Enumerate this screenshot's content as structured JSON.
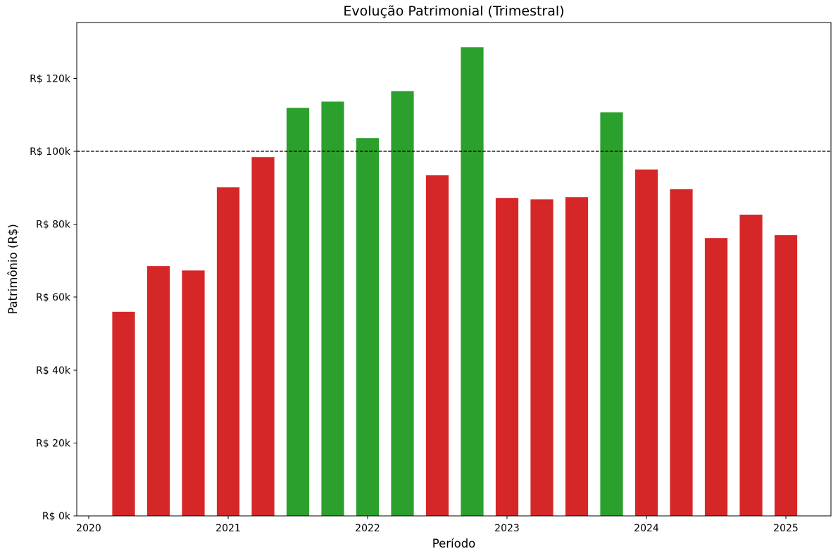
{
  "chart_data": {
    "type": "bar",
    "title": "Evolução Patrimonial (Trimestral)",
    "xlabel": "Período",
    "ylabel": "Patrimônio (R$)",
    "unit": "thousands of R$",
    "categories": [
      "2020Q2",
      "2020Q3",
      "2020Q4",
      "2021Q1",
      "2021Q2",
      "2021Q3",
      "2021Q4",
      "2022Q1",
      "2022Q2",
      "2022Q3",
      "2022Q4",
      "2023Q1",
      "2023Q2",
      "2023Q3",
      "2023Q4",
      "2024Q1",
      "2024Q2",
      "2024Q3",
      "2024Q4",
      "2025Q1"
    ],
    "values": [
      56.0,
      68.5,
      67.3,
      90.1,
      98.4,
      111.9,
      113.6,
      103.6,
      116.5,
      93.4,
      128.5,
      87.2,
      86.8,
      87.4,
      110.7,
      95.0,
      89.6,
      76.2,
      82.6,
      77.0
    ],
    "threshold": {
      "value": 100,
      "style": "dashed"
    },
    "color_rule": "bars above threshold are green, below are red",
    "colors": {
      "above": "#2ca02c",
      "below": "#d62728",
      "threshold_line": "#000000",
      "axis": "#000000",
      "background": "#ffffff",
      "text": "#000000"
    },
    "ylim": [
      0,
      135.3
    ],
    "grid": false,
    "legend": null,
    "y_ticks": [
      {
        "value": 0,
        "label": "R$ 0k"
      },
      {
        "value": 20,
        "label": "R$ 20k"
      },
      {
        "value": 40,
        "label": "R$ 40k"
      },
      {
        "value": 60,
        "label": "R$ 60k"
      },
      {
        "value": 80,
        "label": "R$ 80k"
      },
      {
        "value": 100,
        "label": "R$ 100k"
      },
      {
        "value": 120,
        "label": "R$ 120k"
      }
    ],
    "x_ticks": [
      {
        "quarter_index": 0,
        "label": "2020"
      },
      {
        "quarter_index": 4,
        "label": "2021"
      },
      {
        "quarter_index": 8,
        "label": "2022"
      },
      {
        "quarter_index": 12,
        "label": "2023"
      },
      {
        "quarter_index": 16,
        "label": "2024"
      },
      {
        "quarter_index": 20,
        "label": "2025"
      }
    ]
  }
}
